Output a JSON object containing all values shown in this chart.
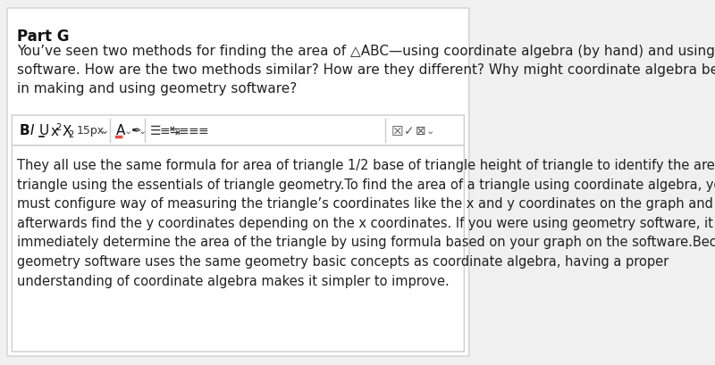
{
  "background_color": "#f0f0f0",
  "card_color": "#ffffff",
  "card_border_color": "#d0d0d0",
  "part_g_label": "Part G",
  "question_text": "You’ve seen two methods for finding the area of △ABC—using coordinate algebra (by hand) and using geometry\nsoftware. How are the two methods similar? How are they different? Why might coordinate algebra be important\nin making and using geometry software?",
  "toolbar_bg": "#ffffff",
  "toolbar_border": "#cccccc",
  "textbox_bg": "#ffffff",
  "textbox_border": "#cccccc",
  "answer_text": "They all use the same formula for area of triangle 1/2 base of triangle height of triangle to identify the area of a\ntriangle using the essentials of triangle geometry.▌To find the area of a triangle using coordinate algebra, you\nmust configure way of measuring the triangle’s coordinates like the x and y coordinates on the graph and\nafterwards find the y coordinates depending on the x coordinates. If you were using geometry software, it would\nimmediately determine the area of the triangle by using formula based on your graph on the software.Because\ngeometry software uses the same geometry basic concepts as coordinate algebra, having a proper\nunderstanding of coordinate algebra makes it simpler to improve.",
  "font_size_question": 11,
  "font_size_answer": 10.5,
  "font_size_partg": 12
}
